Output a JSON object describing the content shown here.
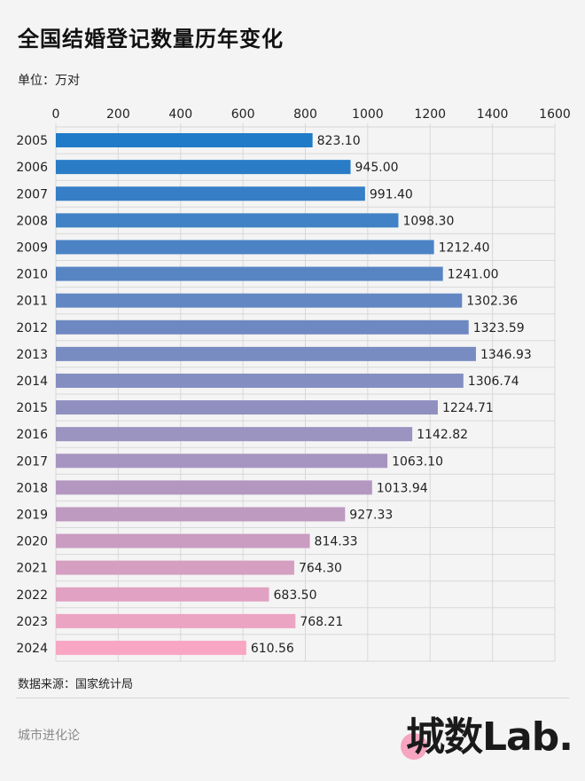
{
  "header": {
    "title": "全国结婚登记数量历年变化",
    "unit": "单位：万对"
  },
  "footer": {
    "source": "数据来源：国家统计局",
    "brand": "城市进化论",
    "logo_text": "城数Lab."
  },
  "chart_data": {
    "type": "bar",
    "orientation": "horizontal",
    "xaxis_position": "top",
    "xlim": [
      0,
      1600
    ],
    "xticks": [
      0,
      200,
      400,
      600,
      800,
      1000,
      1200,
      1400,
      1600
    ],
    "grid": true,
    "categories": [
      "2005",
      "2006",
      "2007",
      "2008",
      "2009",
      "2010",
      "2011",
      "2012",
      "2013",
      "2014",
      "2015",
      "2016",
      "2017",
      "2018",
      "2019",
      "2020",
      "2021",
      "2022",
      "2023",
      "2024"
    ],
    "values": [
      823.1,
      945.0,
      991.4,
      1098.3,
      1212.4,
      1241.0,
      1302.36,
      1323.59,
      1346.93,
      1306.74,
      1224.71,
      1142.82,
      1063.1,
      1013.94,
      927.33,
      814.33,
      764.3,
      683.5,
      768.21,
      610.56
    ],
    "value_labels": [
      "823.10",
      "945.00",
      "991.40",
      "1098.30",
      "1212.40",
      "1241.00",
      "1302.36",
      "1323.59",
      "1346.93",
      "1306.74",
      "1224.71",
      "1142.82",
      "1063.10",
      "1013.94",
      "927.33",
      "814.33",
      "764.30",
      "683.50",
      "768.21",
      "610.56"
    ],
    "colors": {
      "gradient_start": "#1f7ac8",
      "gradient_mid": "#8a8fc0",
      "gradient_end": "#f8a6c3",
      "grid": "#d8d8d8",
      "label": "#222222"
    }
  }
}
